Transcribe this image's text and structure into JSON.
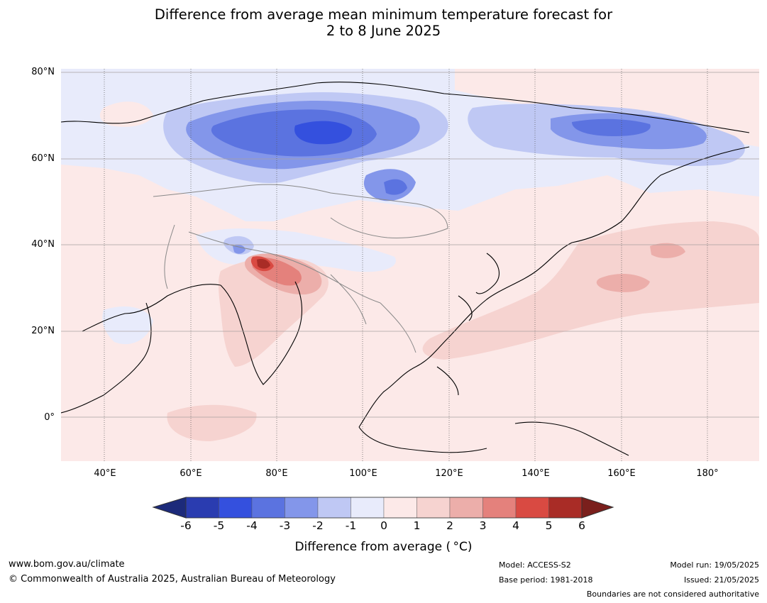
{
  "title": {
    "line1": "Difference from average mean minimum temperature forecast for",
    "line2": "2 to 8 June 2025"
  },
  "map": {
    "lat_labels": [
      "80°N",
      "60°N",
      "40°N",
      "20°N",
      "0°"
    ],
    "lon_labels": [
      "40°E",
      "60°E",
      "80°E",
      "100°E",
      "120°E",
      "140°E",
      "160°E",
      "180°"
    ],
    "lat_range": [
      -10,
      80
    ],
    "lon_range": [
      30,
      191
    ],
    "gridlines": true
  },
  "colorbar": {
    "ticks": [
      "-6",
      "-5",
      "-4",
      "-3",
      "-2",
      "-1",
      "0",
      "1",
      "2",
      "3",
      "4",
      "5",
      "6"
    ],
    "colors": [
      "#2a3cb0",
      "#3450de",
      "#5b73e0",
      "#8396ea",
      "#bfc8f4",
      "#e8ebfb",
      "#fce9e8",
      "#f6d3d0",
      "#ecaeaa",
      "#e4817c",
      "#d94a42",
      "#a92c26"
    ],
    "under_color": "#1c2a7a",
    "over_color": "#7a1f1c",
    "label": "Difference from average ( °C)"
  },
  "footer": {
    "website": "www.bom.gov.au/climate",
    "copyright": "© Commonwealth of Australia 2025, Australian Bureau of Meteorology",
    "model": "Model: ACCESS-S2",
    "base_period": "Base period: 1981-2018",
    "model_run": "Model run: 19/05/2025",
    "issued": "Issued: 21/05/2025",
    "disclaimer": "Boundaries are not considered authoritative"
  }
}
